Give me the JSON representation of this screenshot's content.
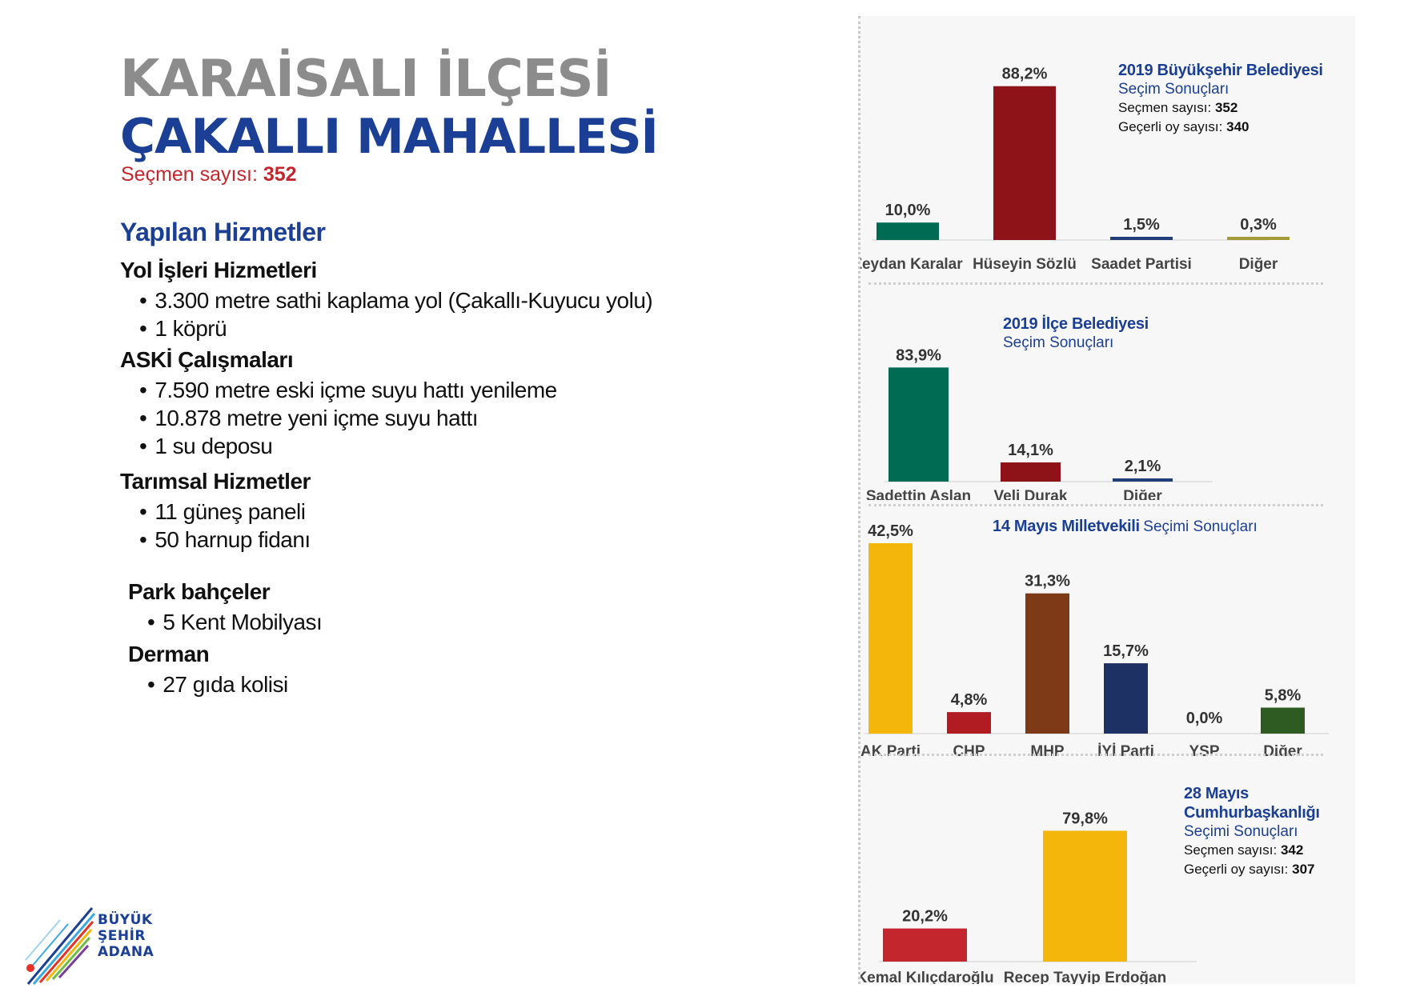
{
  "header": {
    "district": "KARAİSALI İLÇESİ",
    "neighborhood": "ÇAKALLI MAHALLESİ",
    "voter_label": "Seçmen sayısı:",
    "voter_count": "352"
  },
  "services": {
    "title": "Yapılan Hizmetler",
    "groups": [
      {
        "title": "Yol İşleri Hizmetleri",
        "items": [
          "3.300 metre sathi kaplama yol (Çakallı-Kuyucu yolu)",
          "1 köprü"
        ]
      },
      {
        "title": "ASKİ Çalışmaları",
        "items": [
          "7.590 metre eski içme suyu hattı yenileme",
          "10.878 metre yeni içme suyu hattı",
          "1 su deposu"
        ]
      },
      {
        "title": "Tarımsal Hizmetler",
        "items": [
          "11 güneş paneli",
          "50 harnup fidanı"
        ]
      },
      {
        "title": "Park bahçeler",
        "items": [
          "5 Kent Mobilyası"
        ]
      },
      {
        "title": "Derman",
        "items": [
          "27 gıda kolisi"
        ]
      }
    ]
  },
  "logo": {
    "line1": "BÜYÜK",
    "line2": "ŞEHİR",
    "line3": "ADANA"
  },
  "chart_data": [
    {
      "type": "bar",
      "title": "2019 Büyükşehir Belediyesi",
      "subtitle": "Seçim Sonuçları",
      "stats": [
        {
          "label": "Seçmen sayısı:",
          "value": "352"
        },
        {
          "label": "Geçerli oy sayısı:",
          "value": "340"
        }
      ],
      "categories": [
        "Zeydan Karalar",
        "Hüseyin Sözlü",
        "Saadet Partisi",
        "Diğer"
      ],
      "values": [
        10.0,
        88.2,
        1.5,
        0.3
      ],
      "value_labels": [
        "10,0%",
        "88,2%",
        "1,5%",
        "0,3%"
      ],
      "colors": [
        "#006b53",
        "#8e1318",
        "#203d7a",
        "#a39b38"
      ],
      "ylim": [
        0,
        100
      ]
    },
    {
      "type": "bar",
      "title": "2019 İlçe Belediyesi",
      "subtitle": "Seçim Sonuçları",
      "categories": [
        "Sadettin Aslan",
        "Veli Durak",
        "Diğer"
      ],
      "values": [
        83.9,
        14.1,
        2.1
      ],
      "value_labels": [
        "83,9%",
        "14,1%",
        "2,1%"
      ],
      "colors": [
        "#006b53",
        "#8e1318",
        "#203d7a"
      ],
      "ylim": [
        0,
        100
      ]
    },
    {
      "type": "bar",
      "title": "14 Mayıs Milletvekili",
      "subtitle": "Seçimi Sonuçları",
      "categories": [
        "AK Parti",
        "CHP",
        "MHP",
        "İYİ Parti",
        "YSP",
        "Diğer"
      ],
      "values": [
        42.5,
        4.8,
        31.3,
        15.7,
        0.0,
        5.8
      ],
      "value_labels": [
        "42,5%",
        "4,8%",
        "31,3%",
        "15,7%",
        "0,0%",
        "5,8%"
      ],
      "colors": [
        "#f5b60c",
        "#b01c22",
        "#7e3a17",
        "#1e3165",
        "#9e9e9e",
        "#2e5b21"
      ],
      "ylim": [
        0,
        50
      ]
    },
    {
      "type": "bar",
      "title": "28 Mayıs Cumhurbaşkanlığı",
      "subtitle": "Seçimi Sonuçları",
      "stats": [
        {
          "label": "Seçmen sayısı:",
          "value": "342"
        },
        {
          "label": "Geçerli oy sayısı:",
          "value": "307"
        }
      ],
      "categories": [
        "Kemal Kılıçdaroğlu",
        "Recep Tayyip Erdoğan"
      ],
      "values": [
        20.2,
        79.8
      ],
      "value_labels": [
        "20,2%",
        "79,8%"
      ],
      "colors": [
        "#c3262d",
        "#f5b60c"
      ],
      "ylim": [
        0,
        100
      ]
    }
  ]
}
